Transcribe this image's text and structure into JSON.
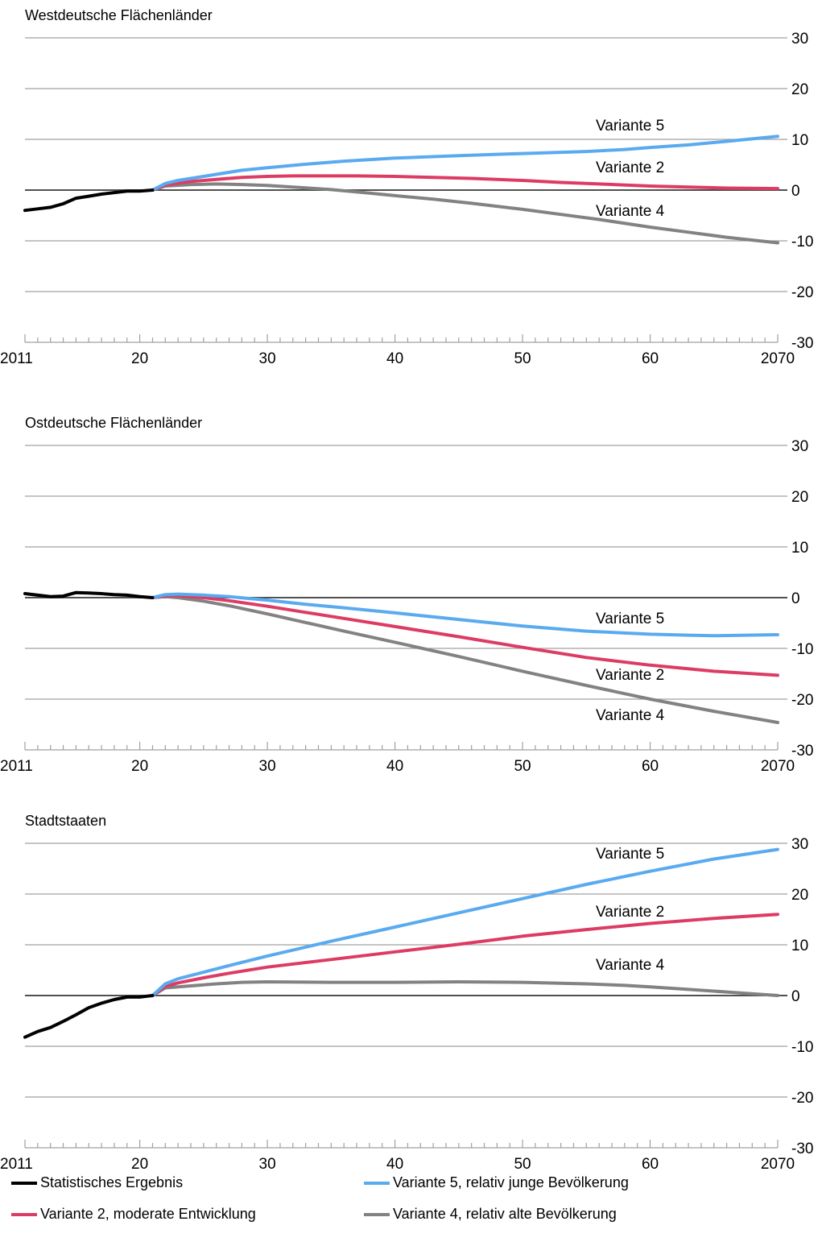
{
  "chart_data": [
    {
      "type": "line",
      "title": "Westdeutsche Flächenländer",
      "x_tick_labels": [
        "2011",
        "20",
        "30",
        "40",
        "50",
        "60",
        "2070"
      ],
      "x_tick_values": [
        2011,
        2020,
        2030,
        2040,
        2050,
        2060,
        2070
      ],
      "y_tick_labels": [
        "30",
        "20",
        "10",
        "0",
        "-10",
        "-20",
        "-30"
      ],
      "y_tick_values": [
        30,
        20,
        10,
        0,
        -10,
        -20,
        -30
      ],
      "ylim": [
        -30,
        30
      ],
      "xlim": [
        2011,
        2070
      ],
      "grid": true,
      "series": [
        {
          "key": "ergebnis",
          "x": [
            2011,
            2012,
            2013,
            2014,
            2015,
            2016,
            2017,
            2018,
            2019,
            2020,
            2021
          ],
          "values": [
            -4,
            -3.7,
            -3.4,
            -2.7,
            -1.6,
            -1.2,
            -0.8,
            -0.5,
            -0.2,
            -0.2,
            0
          ]
        },
        {
          "key": "v5",
          "label": "Variante 5",
          "x": [
            2021,
            2022,
            2023,
            2025,
            2028,
            2030,
            2033,
            2036,
            2040,
            2045,
            2050,
            2055,
            2058,
            2060,
            2063,
            2066,
            2070
          ],
          "values": [
            0,
            1.3,
            1.9,
            2.7,
            3.9,
            4.4,
            5.1,
            5.7,
            6.3,
            6.8,
            7.2,
            7.6,
            8.0,
            8.4,
            8.9,
            9.6,
            10.6
          ]
        },
        {
          "key": "v2",
          "label": "Variante 2",
          "x": [
            2021,
            2022,
            2024,
            2026,
            2028,
            2030,
            2032,
            2035,
            2037,
            2040,
            2043,
            2046,
            2050,
            2053,
            2056,
            2060,
            2063,
            2066,
            2070
          ],
          "values": [
            0,
            1.0,
            1.7,
            2.1,
            2.5,
            2.7,
            2.8,
            2.8,
            2.8,
            2.7,
            2.5,
            2.3,
            1.9,
            1.5,
            1.2,
            0.8,
            0.6,
            0.4,
            0.3
          ]
        },
        {
          "key": "v4",
          "label": "Variante 4",
          "x": [
            2021,
            2022,
            2024,
            2026,
            2028,
            2030,
            2032,
            2035,
            2038,
            2040,
            2043,
            2046,
            2050,
            2053,
            2056,
            2060,
            2063,
            2066,
            2070
          ],
          "values": [
            0,
            0.8,
            1.1,
            1.2,
            1.1,
            0.9,
            0.6,
            0.1,
            -0.6,
            -1.1,
            -1.8,
            -2.6,
            -3.8,
            -4.8,
            -5.8,
            -7.3,
            -8.3,
            -9.3,
            -10.4
          ]
        }
      ]
    },
    {
      "type": "line",
      "title": "Ostdeutsche Flächenländer",
      "x_tick_labels": [
        "2011",
        "20",
        "30",
        "40",
        "50",
        "60",
        "2070"
      ],
      "x_tick_values": [
        2011,
        2020,
        2030,
        2040,
        2050,
        2060,
        2070
      ],
      "y_tick_labels": [
        "30",
        "20",
        "10",
        "0",
        "-10",
        "-20",
        "-30"
      ],
      "y_tick_values": [
        30,
        20,
        10,
        0,
        -10,
        -20,
        -30
      ],
      "ylim": [
        -30,
        30
      ],
      "xlim": [
        2011,
        2070
      ],
      "grid": true,
      "series": [
        {
          "key": "ergebnis",
          "x": [
            2011,
            2012,
            2013,
            2014,
            2015,
            2016,
            2017,
            2018,
            2019,
            2020,
            2021
          ],
          "values": [
            0.8,
            0.5,
            0.2,
            0.3,
            1.0,
            0.9,
            0.8,
            0.6,
            0.5,
            0.2,
            0
          ]
        },
        {
          "key": "v5",
          "label": "Variante 5",
          "x": [
            2021,
            2022,
            2023,
            2025,
            2027,
            2030,
            2033,
            2036,
            2040,
            2045,
            2050,
            2055,
            2060,
            2063,
            2065,
            2070
          ],
          "values": [
            0,
            0.6,
            0.7,
            0.5,
            0.2,
            -0.5,
            -1.3,
            -2.0,
            -3.0,
            -4.3,
            -5.6,
            -6.6,
            -7.2,
            -7.4,
            -7.5,
            -7.3
          ]
        },
        {
          "key": "v2",
          "label": "Variante 2",
          "x": [
            2021,
            2022,
            2023,
            2025,
            2027,
            2030,
            2033,
            2036,
            2040,
            2045,
            2050,
            2055,
            2060,
            2065,
            2070
          ],
          "values": [
            0,
            0.4,
            0.4,
            0,
            -0.6,
            -1.7,
            -2.9,
            -4.1,
            -5.7,
            -7.7,
            -9.8,
            -11.8,
            -13.3,
            -14.5,
            -15.3
          ]
        },
        {
          "key": "v4",
          "label": "Variante 4",
          "x": [
            2021,
            2022,
            2023,
            2025,
            2027,
            2030,
            2033,
            2036,
            2040,
            2045,
            2050,
            2055,
            2060,
            2065,
            2070
          ],
          "values": [
            0,
            0.2,
            0,
            -0.7,
            -1.6,
            -3.2,
            -4.9,
            -6.6,
            -8.8,
            -11.6,
            -14.5,
            -17.3,
            -20.0,
            -22.4,
            -24.6
          ]
        }
      ]
    },
    {
      "type": "line",
      "title": "Stadtstaaten",
      "x_tick_labels": [
        "2011",
        "20",
        "30",
        "40",
        "50",
        "60",
        "2070"
      ],
      "x_tick_values": [
        2011,
        2020,
        2030,
        2040,
        2050,
        2060,
        2070
      ],
      "y_tick_labels": [
        "30",
        "20",
        "10",
        "0",
        "-10",
        "-20",
        "-30"
      ],
      "y_tick_values": [
        30,
        20,
        10,
        0,
        -10,
        -20,
        -30
      ],
      "ylim": [
        -30,
        30
      ],
      "xlim": [
        2011,
        2070
      ],
      "grid": true,
      "series": [
        {
          "key": "ergebnis",
          "x": [
            2011,
            2012,
            2013,
            2014,
            2015,
            2016,
            2017,
            2018,
            2019,
            2020,
            2021
          ],
          "values": [
            -8.2,
            -7.1,
            -6.3,
            -5.1,
            -3.8,
            -2.4,
            -1.5,
            -0.8,
            -0.3,
            -0.3,
            0
          ]
        },
        {
          "key": "v5",
          "label": "Variante 5",
          "x": [
            2021,
            2022,
            2023,
            2025,
            2027,
            2030,
            2035,
            2040,
            2045,
            2050,
            2055,
            2060,
            2065,
            2070
          ],
          "values": [
            0,
            2.3,
            3.3,
            4.6,
            5.9,
            7.8,
            10.7,
            13.5,
            16.3,
            19.1,
            21.9,
            24.5,
            26.9,
            28.8
          ]
        },
        {
          "key": "v2",
          "label": "Variante 2",
          "x": [
            2021,
            2022,
            2023,
            2025,
            2027,
            2030,
            2035,
            2040,
            2045,
            2050,
            2055,
            2060,
            2065,
            2070
          ],
          "values": [
            0,
            1.8,
            2.5,
            3.5,
            4.4,
            5.6,
            7.1,
            8.6,
            10.1,
            11.7,
            13.0,
            14.2,
            15.2,
            16.0
          ]
        },
        {
          "key": "v4",
          "label": "Variante 4",
          "x": [
            2021,
            2022,
            2024,
            2026,
            2028,
            2030,
            2035,
            2040,
            2045,
            2050,
            2055,
            2058,
            2060,
            2063,
            2066,
            2070
          ],
          "values": [
            0,
            1.5,
            1.9,
            2.3,
            2.6,
            2.7,
            2.6,
            2.6,
            2.7,
            2.6,
            2.3,
            2.0,
            1.7,
            1.2,
            0.7,
            0
          ]
        }
      ]
    }
  ],
  "legend": [
    {
      "key": "ergebnis",
      "label": "Statistisches Ergebnis"
    },
    {
      "key": "v5",
      "label": "Variante 5, relativ junge Bevölkerung"
    },
    {
      "key": "v2",
      "label": "Variante 2, moderate Entwicklung"
    },
    {
      "key": "v4",
      "label": "Variante 4, relativ alte Bevölkerung"
    }
  ],
  "colors": {
    "ergebnis": "#000000",
    "v5": "#5aaaf0",
    "v2": "#dc3c64",
    "v4": "#828282",
    "grid": "#a0a0a0",
    "zero": "#505050"
  }
}
